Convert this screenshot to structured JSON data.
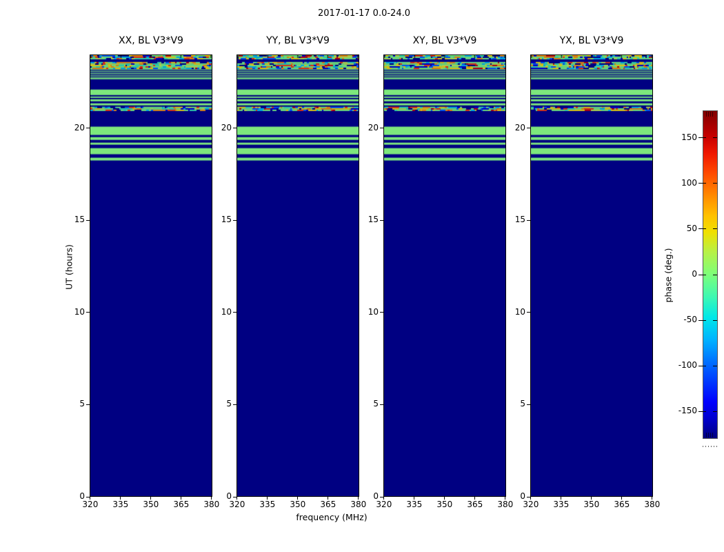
{
  "chart_data": {
    "type": "heatmap",
    "title": "2017-01-17 0.0-24.0",
    "xlabel": "frequency (MHz)",
    "ylabel": "UT (hours)",
    "subplots": [
      {
        "pol": "XX",
        "title": "XX, BL V3*V9"
      },
      {
        "pol": "YY",
        "title": "YY, BL V3*V9"
      },
      {
        "pol": "XY",
        "title": "XY, BL V3*V9"
      },
      {
        "pol": "YX",
        "title": "YX, BL V3*V9"
      }
    ],
    "x_ticks": [
      320,
      335,
      350,
      365,
      380
    ],
    "x_tick_labels": [
      "320",
      "335",
      "350",
      "365",
      "380"
    ],
    "x_range": [
      319.7,
      380.4
    ],
    "y_ticks": [
      0,
      5,
      10,
      15,
      20
    ],
    "y_tick_labels": [
      "0",
      "5",
      "10",
      "15",
      "20"
    ],
    "y_range": [
      0,
      24
    ],
    "grid": false,
    "colorbar": {
      "label": "phase (deg.)",
      "min": -180,
      "max": 180,
      "ticks": [
        150,
        100,
        50,
        0,
        -50,
        -100,
        -150
      ],
      "tick_labels": [
        "150",
        "100",
        "50",
        "0",
        "-50",
        "-100",
        "-150"
      ],
      "colormap": "jet"
    },
    "band_kinds": {
      "navy": "phase ~ -180 deg (solid dark blue)",
      "green": "phase ~ 0 deg (solid light green)",
      "noise": "random speckled phases spanning -180..180 deg",
      "thin_stripes": "alternating thin green/navy rows"
    },
    "bands_ut": [
      {
        "from": 23.81,
        "to": 24.0,
        "kind": "noise"
      },
      {
        "from": 23.63,
        "to": 23.81,
        "kind": "navy"
      },
      {
        "from": 23.25,
        "to": 23.63,
        "kind": "noise"
      },
      {
        "from": 22.76,
        "to": 23.25,
        "kind": "thin_stripes"
      },
      {
        "from": 22.69,
        "to": 22.76,
        "kind": "green"
      },
      {
        "from": 22.13,
        "to": 22.69,
        "kind": "navy"
      },
      {
        "from": 21.83,
        "to": 22.13,
        "kind": "green"
      },
      {
        "from": 21.75,
        "to": 21.83,
        "kind": "navy"
      },
      {
        "from": 21.68,
        "to": 21.75,
        "kind": "green"
      },
      {
        "from": 21.6,
        "to": 21.68,
        "kind": "navy"
      },
      {
        "from": 21.49,
        "to": 21.6,
        "kind": "green"
      },
      {
        "from": 21.38,
        "to": 21.49,
        "kind": "navy"
      },
      {
        "from": 21.27,
        "to": 21.38,
        "kind": "green"
      },
      {
        "from": 21.19,
        "to": 21.27,
        "kind": "navy"
      },
      {
        "from": 20.97,
        "to": 21.19,
        "kind": "noise"
      },
      {
        "from": 20.11,
        "to": 20.97,
        "kind": "navy"
      },
      {
        "from": 19.66,
        "to": 20.11,
        "kind": "green"
      },
      {
        "from": 19.54,
        "to": 19.66,
        "kind": "navy"
      },
      {
        "from": 19.39,
        "to": 19.54,
        "kind": "green"
      },
      {
        "from": 19.24,
        "to": 19.39,
        "kind": "navy"
      },
      {
        "from": 19.13,
        "to": 19.24,
        "kind": "green"
      },
      {
        "from": 18.94,
        "to": 19.13,
        "kind": "navy"
      },
      {
        "from": 18.61,
        "to": 18.94,
        "kind": "green"
      },
      {
        "from": 18.42,
        "to": 18.61,
        "kind": "navy"
      },
      {
        "from": 18.27,
        "to": 18.42,
        "kind": "green"
      },
      {
        "from": 0.0,
        "to": 18.27,
        "kind": "navy"
      }
    ],
    "colors": {
      "navy": "#000082",
      "green": "#7de87c",
      "noise_palette": [
        "#7dff7a",
        "#36f0b0",
        "#00c8f0",
        "#0064ff",
        "#0000d2",
        "#000082",
        "#c8f546",
        "#ffe600",
        "#ff9b00",
        "#ff3c00",
        "#c80000"
      ],
      "noise_weights": [
        0.3,
        0.08,
        0.07,
        0.06,
        0.05,
        0.1,
        0.06,
        0.12,
        0.07,
        0.06,
        0.03
      ]
    }
  }
}
